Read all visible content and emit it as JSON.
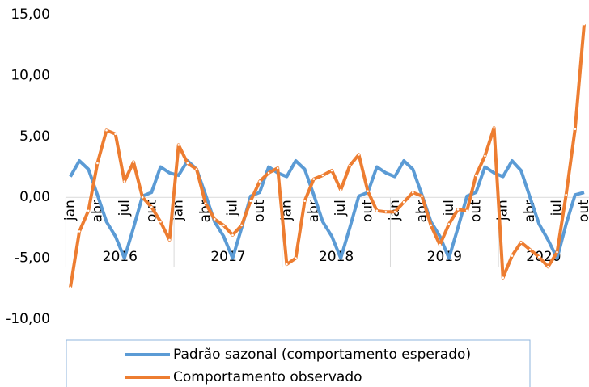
{
  "chart_data": {
    "type": "line",
    "categories": [
      "jan",
      null,
      null,
      "abr",
      null,
      null,
      "jul",
      null,
      null,
      "out",
      null,
      null,
      "jan",
      null,
      null,
      "abr",
      null,
      null,
      "jul",
      null,
      null,
      "out",
      null,
      null,
      "jan",
      null,
      null,
      "abr",
      null,
      null,
      "jul",
      null,
      null,
      "out",
      null,
      null,
      "jan",
      null,
      null,
      "abr",
      null,
      null,
      "jul",
      null,
      null,
      "out",
      null,
      null,
      "jan",
      null,
      null,
      "abr",
      null,
      null,
      "jul",
      null,
      null,
      "out"
    ],
    "year_groups": [
      "2016",
      "2017",
      "2018",
      "2019",
      "2020"
    ],
    "series": [
      {
        "name": "Padrão sazonal (comportamento esperado)",
        "color": "#5b9bd5",
        "values": [
          1.7,
          3.0,
          2.3,
          0.2,
          -2.0,
          -3.2,
          -5.0,
          -2.5,
          0.1,
          0.4,
          2.5,
          2.0,
          1.8,
          3.0,
          2.3,
          0.2,
          -2.0,
          -3.2,
          -5.0,
          -2.5,
          0.1,
          0.4,
          2.5,
          2.0,
          1.7,
          3.0,
          2.3,
          0.2,
          -2.0,
          -3.2,
          -5.0,
          -2.5,
          0.1,
          0.4,
          2.5,
          2.0,
          1.7,
          3.0,
          2.3,
          0.2,
          -2.0,
          -3.2,
          -5.0,
          -2.5,
          0.1,
          0.4,
          2.5,
          2.0,
          1.7,
          3.0,
          2.2,
          0.0,
          -2.2,
          -3.5,
          -5.0,
          -2.2,
          0.2,
          0.4
        ]
      },
      {
        "name": "Comportamento observado",
        "color": "#ed7d31",
        "values": [
          -7.4,
          -2.8,
          -1.1,
          2.8,
          5.5,
          5.2,
          1.3,
          2.9,
          0.0,
          -0.8,
          -2.0,
          -3.5,
          4.3,
          2.8,
          2.3,
          -0.5,
          -1.8,
          -2.3,
          -3.1,
          -2.3,
          -0.3,
          1.3,
          2.0,
          2.4,
          -5.5,
          -5.0,
          -0.3,
          1.5,
          1.8,
          2.2,
          0.6,
          2.6,
          3.5,
          0.5,
          -1.1,
          -1.2,
          -1.2,
          -0.4,
          0.4,
          0.1,
          -2.3,
          -3.9,
          -2.2,
          -1.0,
          -1.1,
          1.8,
          3.4,
          5.7,
          -6.6,
          -4.8,
          -3.7,
          -4.3,
          -4.9,
          -5.7,
          -4.5,
          0.2,
          5.6,
          14.2
        ]
      }
    ],
    "ylim": [
      -10,
      15
    ],
    "yticks": [
      {
        "value": -10,
        "label": "-10,00"
      },
      {
        "value": -5,
        "label": "-5,00"
      },
      {
        "value": 0,
        "label": "0,00"
      },
      {
        "value": 5,
        "label": "5,00"
      },
      {
        "value": 10,
        "label": "10,00"
      },
      {
        "value": 15,
        "label": "15,00"
      }
    ],
    "legend": "bottom"
  }
}
